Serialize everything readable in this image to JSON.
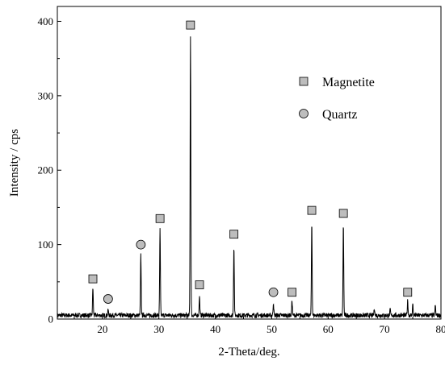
{
  "chart_data": {
    "type": "line",
    "title": "",
    "xlabel": "2-Theta/deg.",
    "ylabel": "Intensity / cps",
    "xlim": [
      12,
      80
    ],
    "ylim": [
      0,
      420
    ],
    "x_ticks": [
      20,
      30,
      40,
      50,
      60,
      70,
      80
    ],
    "y_ticks": [
      0,
      100,
      200,
      300,
      400
    ],
    "grid": false,
    "legend_position": "top-right",
    "legend": [
      {
        "label": "Magnetite",
        "marker": "square",
        "color": "#bdbdbd"
      },
      {
        "label": "Quartz",
        "marker": "circle",
        "color": "#bdbdbd"
      }
    ],
    "series": [
      {
        "color": "#000000",
        "baseline": 5,
        "peaks": [
          {
            "x": 18.3,
            "y": 42
          },
          {
            "x": 21.0,
            "y": 12
          },
          {
            "x": 26.8,
            "y": 86
          },
          {
            "x": 30.2,
            "y": 120
          },
          {
            "x": 35.6,
            "y": 380
          },
          {
            "x": 37.2,
            "y": 30
          },
          {
            "x": 43.3,
            "y": 98
          },
          {
            "x": 50.3,
            "y": 22
          },
          {
            "x": 53.6,
            "y": 25
          },
          {
            "x": 57.1,
            "y": 130
          },
          {
            "x": 62.7,
            "y": 127
          },
          {
            "x": 68.2,
            "y": 15
          },
          {
            "x": 71.0,
            "y": 12
          },
          {
            "x": 74.1,
            "y": 25
          },
          {
            "x": 75.0,
            "y": 20
          },
          {
            "x": 79.0,
            "y": 18
          }
        ]
      }
    ],
    "annotations": [
      {
        "phase": "Magnetite",
        "x": 18.3,
        "y": 54
      },
      {
        "phase": "Quartz",
        "x": 21.0,
        "y": 27
      },
      {
        "phase": "Quartz",
        "x": 26.8,
        "y": 100
      },
      {
        "phase": "Magnetite",
        "x": 30.2,
        "y": 135
      },
      {
        "phase": "Magnetite",
        "x": 35.6,
        "y": 395
      },
      {
        "phase": "Magnetite",
        "x": 37.2,
        "y": 46
      },
      {
        "phase": "Magnetite",
        "x": 43.3,
        "y": 114
      },
      {
        "phase": "Quartz",
        "x": 50.3,
        "y": 36
      },
      {
        "phase": "Magnetite",
        "x": 53.6,
        "y": 36
      },
      {
        "phase": "Magnetite",
        "x": 57.1,
        "y": 146
      },
      {
        "phase": "Magnetite",
        "x": 62.7,
        "y": 142
      },
      {
        "phase": "Magnetite",
        "x": 74.1,
        "y": 36
      }
    ]
  }
}
